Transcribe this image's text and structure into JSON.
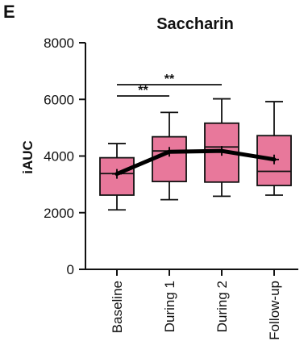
{
  "panel_label": "E",
  "chart_data": {
    "type": "box",
    "title": "Saccharin",
    "xlabel": "",
    "ylabel": "iAUC",
    "ylim": [
      0,
      8000
    ],
    "yticks": [
      0,
      2000,
      4000,
      6000,
      8000
    ],
    "categories": [
      "Baseline",
      "During 1",
      "During 2",
      "Follow-up"
    ],
    "boxes": [
      {
        "min": 2100,
        "q1": 2620,
        "median": 3380,
        "q3": 3940,
        "max": 4440,
        "mean": 3370
      },
      {
        "min": 2460,
        "q1": 3100,
        "median": 4180,
        "q3": 4680,
        "max": 5540,
        "mean": 4150
      },
      {
        "min": 2580,
        "q1": 3080,
        "median": 4320,
        "q3": 5160,
        "max": 6020,
        "mean": 4180
      },
      {
        "min": 2620,
        "q1": 2960,
        "median": 3460,
        "q3": 4720,
        "max": 5920,
        "mean": 3880
      }
    ],
    "mean_line": true,
    "box_color": "#E8789B",
    "mean_line_color": "#000000",
    "significance": [
      {
        "from": "Baseline",
        "to": "During 1",
        "label": "**"
      },
      {
        "from": "Baseline",
        "to": "During 2",
        "label": "**"
      }
    ],
    "grid": false
  }
}
